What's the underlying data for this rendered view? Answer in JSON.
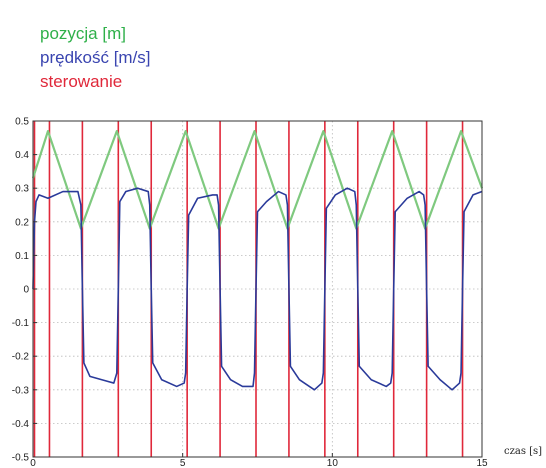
{
  "chart_data": {
    "type": "line",
    "xlabel": "czas [s]",
    "ylabel": "",
    "xlim": [
      0,
      15
    ],
    "ylim": [
      -0.5,
      0.5
    ],
    "x_ticks": [
      0,
      5,
      10,
      15
    ],
    "y_ticks": [
      0.5,
      0.4,
      0.3,
      0.2,
      0.1,
      0,
      -0.1,
      -0.2,
      -0.3,
      -0.4,
      -0.5
    ],
    "x_tick_labels": [
      "0",
      "5",
      "10",
      "15"
    ],
    "y_tick_labels": [
      "0.5",
      "0.4",
      "0.3",
      "0.2",
      "0.1",
      "0",
      "-0.1",
      "-0.2",
      "-0.3",
      "-0.4",
      "-0.5"
    ],
    "grid": true,
    "legend_position": "top-left",
    "series": [
      {
        "name": "pozycja [m]",
        "color": "#7fc97f",
        "x": [
          0,
          0.5,
          1.6,
          2.8,
          3.9,
          5.1,
          6.2,
          7.4,
          8.5,
          9.7,
          10.8,
          12.0,
          13.1,
          14.3,
          15.0
        ],
        "y": [
          0.33,
          0.47,
          0.18,
          0.47,
          0.18,
          0.47,
          0.18,
          0.47,
          0.18,
          0.47,
          0.18,
          0.47,
          0.18,
          0.47,
          0.3
        ]
      },
      {
        "name": "prędkość [m/s]",
        "color": "#2a3a9a",
        "x": [
          0,
          0.05,
          0.1,
          0.2,
          0.5,
          1.0,
          1.5,
          1.6,
          1.65,
          1.7,
          1.9,
          2.3,
          2.7,
          2.8,
          2.85,
          2.9,
          3.1,
          3.5,
          3.85,
          3.9,
          3.95,
          4.0,
          4.3,
          4.8,
          5.05,
          5.1,
          5.15,
          5.2,
          5.5,
          6.0,
          6.15,
          6.2,
          6.25,
          6.3,
          6.6,
          7.0,
          7.35,
          7.4,
          7.45,
          7.5,
          7.8,
          8.2,
          8.45,
          8.5,
          8.55,
          8.6,
          8.9,
          9.4,
          9.65,
          9.7,
          9.75,
          9.8,
          10.1,
          10.5,
          10.75,
          10.8,
          10.85,
          10.9,
          11.3,
          11.8,
          11.95,
          12.0,
          12.05,
          12.1,
          12.5,
          12.9,
          13.05,
          13.1,
          13.15,
          13.2,
          13.6,
          14.0,
          14.25,
          14.3,
          14.35,
          14.4,
          14.7,
          15.0
        ],
        "y": [
          0.0,
          0.2,
          0.26,
          0.28,
          0.27,
          0.29,
          0.29,
          0.25,
          0.0,
          -0.22,
          -0.26,
          -0.27,
          -0.28,
          -0.25,
          0.0,
          0.26,
          0.29,
          0.3,
          0.29,
          0.25,
          0.0,
          -0.22,
          -0.27,
          -0.29,
          -0.28,
          -0.25,
          0.0,
          0.22,
          0.27,
          0.28,
          0.28,
          0.25,
          0.0,
          -0.23,
          -0.27,
          -0.29,
          -0.29,
          -0.25,
          0.0,
          0.23,
          0.26,
          0.29,
          0.28,
          0.25,
          0.0,
          -0.23,
          -0.27,
          -0.3,
          -0.28,
          -0.25,
          0.0,
          0.24,
          0.28,
          0.3,
          0.29,
          0.25,
          0.0,
          -0.23,
          -0.27,
          -0.29,
          -0.28,
          -0.25,
          0.0,
          0.23,
          0.27,
          0.29,
          0.28,
          0.25,
          0.0,
          -0.23,
          -0.27,
          -0.3,
          -0.28,
          -0.25,
          0.0,
          0.23,
          0.28,
          0.29
        ]
      },
      {
        "name": "sterowanie",
        "color": "#e0283a",
        "x": [
          0.05,
          0.55,
          1.65,
          2.85,
          3.95,
          5.15,
          6.25,
          7.45,
          8.55,
          9.75,
          10.85,
          12.05,
          13.15,
          14.35
        ],
        "y_range": [
          -0.5,
          0.5
        ],
        "note_type": "vertical_lines"
      }
    ]
  }
}
